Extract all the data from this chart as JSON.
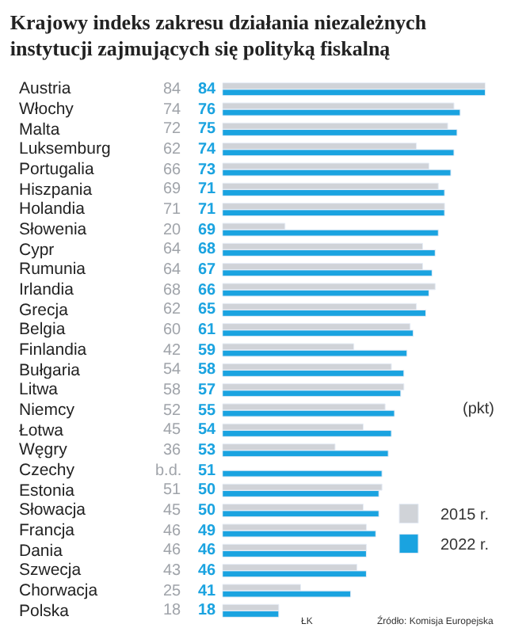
{
  "chart_data": {
    "type": "bar",
    "orientation": "horizontal",
    "title": "Krajowy indeks zakresu działania niezależnych\ninstytucji zajmujących się polityką fiskalną",
    "categories": [
      "Austria",
      "Włochy",
      "Malta",
      "Luksemburg",
      "Portugalia",
      "Hiszpania",
      "Holandia",
      "Słowenia",
      "Cypr",
      "Rumunia",
      "Irlandia",
      "Grecja",
      "Belgia",
      "Finlandia",
      "Bułgaria",
      "Litwa",
      "Niemcy",
      "Łotwa",
      "Węgry",
      "Czechy",
      "Estonia",
      "Słowacja",
      "Francja",
      "Dania",
      "Szwecja",
      "Chorwacja",
      "Polska"
    ],
    "series": [
      {
        "name": "2015 r.",
        "color": "#d0d3d8",
        "values": [
          84,
          74,
          72,
          62,
          66,
          69,
          71,
          20,
          64,
          64,
          68,
          62,
          60,
          42,
          54,
          58,
          52,
          45,
          36,
          null,
          51,
          45,
          46,
          46,
          43,
          25,
          18
        ],
        "value_labels": [
          "84",
          "74",
          "72",
          "62",
          "66",
          "69",
          "71",
          "20",
          "64",
          "64",
          "68",
          "62",
          "60",
          "42",
          "54",
          "58",
          "52",
          "45",
          "36",
          "b.d.",
          "51",
          "45",
          "46",
          "46",
          "43",
          "25",
          "18"
        ]
      },
      {
        "name": "2022 r.",
        "color": "#1aa3e0",
        "values": [
          84,
          76,
          75,
          74,
          73,
          71,
          71,
          69,
          68,
          67,
          66,
          65,
          61,
          59,
          58,
          57,
          55,
          54,
          53,
          51,
          50,
          50,
          49,
          46,
          46,
          41,
          18
        ],
        "value_labels": [
          "84",
          "76",
          "75",
          "74",
          "73",
          "71",
          "71",
          "69",
          "68",
          "67",
          "66",
          "65",
          "61",
          "59",
          "58",
          "57",
          "55",
          "54",
          "53",
          "51",
          "50",
          "50",
          "49",
          "46",
          "46",
          "41",
          "18"
        ]
      }
    ],
    "xlim": [
      0,
      84
    ],
    "legend": "bottom right",
    "annotations": [
      "(pkt)",
      "ŁK",
      "Źródło: Komisja Europejska"
    ]
  }
}
